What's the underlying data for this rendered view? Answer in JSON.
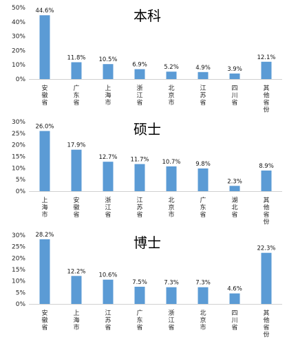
{
  "chart_data": [
    {
      "type": "bar",
      "title": "本科",
      "categories": [
        "安徽省",
        "广东省",
        "上海市",
        "浙江省",
        "北京市",
        "江苏省",
        "四川省",
        "其他省份"
      ],
      "values": [
        44.6,
        11.8,
        10.5,
        6.9,
        5.2,
        4.9,
        3.9,
        12.1
      ],
      "value_labels": [
        "44.6%",
        "11.8%",
        "10.5%",
        "6.9%",
        "5.2%",
        "4.9%",
        "3.9%",
        "12.1%"
      ],
      "yticks": [
        "0%",
        "10%",
        "20%",
        "30%",
        "40%",
        "50%"
      ],
      "ylim": [
        0,
        50
      ],
      "bar_color": "#5b9bd5"
    },
    {
      "type": "bar",
      "title": "硕士",
      "categories": [
        "上海市",
        "安徽省",
        "浙江省",
        "江苏省",
        "北京市",
        "广东省",
        "湖北省",
        "其他省份"
      ],
      "values": [
        26.0,
        17.9,
        12.7,
        11.7,
        10.7,
        9.8,
        2.3,
        8.9
      ],
      "value_labels": [
        "26.0%",
        "17.9%",
        "12.7%",
        "11.7%",
        "10.7%",
        "9.8%",
        "2.3%",
        "8.9%"
      ],
      "yticks": [
        "0%",
        "5%",
        "10%",
        "15%",
        "20%",
        "25%",
        "30%"
      ],
      "ylim": [
        0,
        30
      ],
      "bar_color": "#5b9bd5"
    },
    {
      "type": "bar",
      "title": "博士",
      "categories": [
        "安徽省",
        "上海市",
        "江苏省",
        "广东省",
        "浙江省",
        "北京市",
        "四川省",
        "其他省份"
      ],
      "values": [
        28.2,
        12.2,
        10.6,
        7.5,
        7.3,
        7.3,
        4.6,
        22.3
      ],
      "value_labels": [
        "28.2%",
        "12.2%",
        "10.6%",
        "7.5%",
        "7.3%",
        "7.3%",
        "4.6%",
        "22.3%"
      ],
      "yticks": [
        "0%",
        "5%",
        "10%",
        "15%",
        "20%",
        "25%",
        "30%"
      ],
      "ylim": [
        0,
        30
      ],
      "bar_color": "#5b9bd5"
    }
  ]
}
